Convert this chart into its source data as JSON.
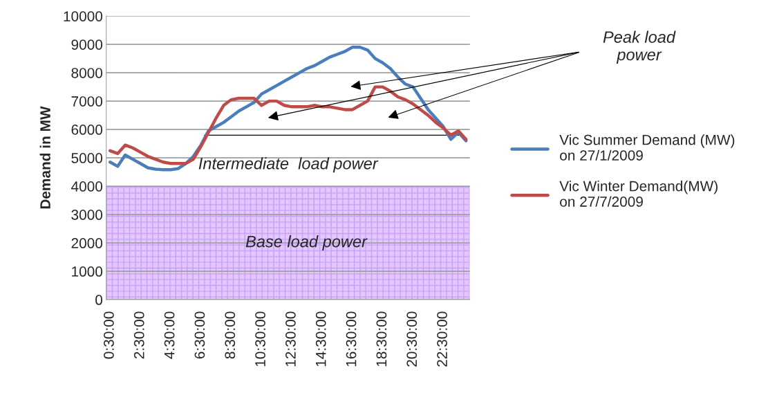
{
  "chart_data": {
    "type": "line",
    "ylabel": "Demand in MW",
    "categories": [
      "0:30:00",
      null,
      null,
      null,
      "2:30:00",
      null,
      null,
      null,
      "4:30:00",
      null,
      null,
      null,
      "6:30:00",
      null,
      null,
      null,
      "8:30:00",
      null,
      null,
      null,
      "10:30:00",
      null,
      null,
      null,
      "12:30:00",
      null,
      null,
      null,
      "14:30:00",
      null,
      null,
      null,
      "16:30:00",
      null,
      null,
      null,
      "18:30:00",
      null,
      null,
      null,
      "20:30:00",
      null,
      null,
      null,
      "22:30:00",
      null,
      null,
      null
    ],
    "series": [
      {
        "name": "Vic Summer Demand (MW) on 27/1/2009",
        "color": "#4a7ebb",
        "values": [
          4850,
          4700,
          5100,
          4950,
          4800,
          4650,
          4600,
          4580,
          4580,
          4620,
          4800,
          5050,
          5450,
          5950,
          6100,
          6250,
          6450,
          6650,
          6800,
          6950,
          7250,
          7400,
          7550,
          7700,
          7850,
          8000,
          8150,
          8250,
          8400,
          8550,
          8650,
          8750,
          8900,
          8900,
          8800,
          8500,
          8350,
          8150,
          7850,
          7600,
          7500,
          7100,
          6700,
          6400,
          6100,
          5650,
          5900,
          5600
        ]
      },
      {
        "name": "Vic Winter Demand(MW) on 27/7/2009",
        "color": "#be4b48",
        "values": [
          5250,
          5150,
          5450,
          5350,
          5200,
          5050,
          4950,
          4850,
          4800,
          4800,
          4800,
          4950,
          5400,
          5900,
          6400,
          6850,
          7050,
          7100,
          7100,
          7100,
          6850,
          7000,
          7000,
          6850,
          6800,
          6800,
          6800,
          6850,
          6800,
          6800,
          6750,
          6700,
          6700,
          6850,
          7000,
          7500,
          7500,
          7350,
          7150,
          7050,
          6900,
          6700,
          6500,
          6250,
          6050,
          5800,
          5950,
          5650
        ]
      }
    ],
    "ylim": [
      0,
      10000
    ],
    "yticks": [
      0,
      1000,
      2000,
      3000,
      4000,
      5000,
      6000,
      7000,
      8000,
      9000,
      10000
    ],
    "grid": "y",
    "legend": "right",
    "marker": "none",
    "line_style": "solid",
    "bands": [
      {
        "axis": "y",
        "from": 0,
        "to": 4000,
        "label": "Base load power",
        "color": "#e3c8ff"
      }
    ],
    "ref_lines": [
      {
        "axis": "y",
        "value": 5800,
        "color": "#000000"
      }
    ],
    "annotations": [
      "Intermediate  load power",
      "Peak load power"
    ]
  }
}
